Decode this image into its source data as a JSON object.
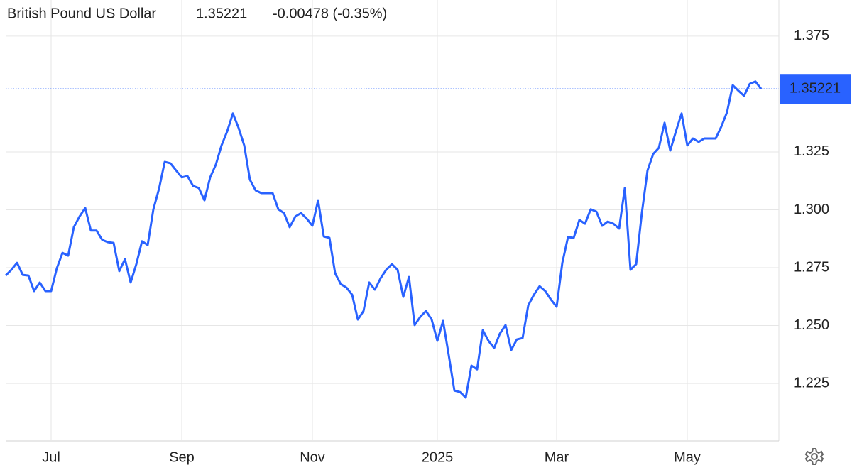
{
  "chart_data": {
    "type": "line",
    "title": "British Pound US Dollar",
    "last_price": 1.35221,
    "change_label": "-0.00478 (-0.35%)",
    "color": "#2962ff",
    "change_color": "#e53935",
    "categories": [
      null,
      null,
      null,
      null,
      null,
      null,
      null,
      null,
      "Jul",
      null,
      null,
      null,
      null,
      null,
      null,
      null,
      null,
      null,
      null,
      null,
      null,
      null,
      null,
      null,
      null,
      null,
      null,
      null,
      null,
      null,
      null,
      "Sep",
      null,
      null,
      null,
      null,
      null,
      null,
      null,
      null,
      null,
      null,
      null,
      null,
      null,
      null,
      null,
      null,
      null,
      null,
      null,
      null,
      null,
      null,
      "Nov",
      null,
      null,
      null,
      null,
      null,
      null,
      null,
      null,
      null,
      null,
      null,
      null,
      null,
      null,
      null,
      null,
      null,
      null,
      null,
      null,
      null,
      "2025",
      null,
      null,
      null,
      null,
      null,
      null,
      null,
      null,
      null,
      null,
      null,
      null,
      null,
      null,
      null,
      null,
      null,
      null,
      null,
      null,
      "Mar",
      null,
      null,
      null,
      null,
      null,
      null,
      null,
      null,
      null,
      null,
      null,
      null,
      null,
      null,
      null,
      null,
      null,
      null,
      null,
      null,
      null,
      null,
      "May",
      null,
      null,
      null,
      null,
      null,
      null,
      null,
      null,
      null,
      null,
      null,
      null,
      null
    ],
    "values": [
      1.2716,
      1.2741,
      1.2771,
      1.2719,
      1.2716,
      1.2649,
      1.2686,
      1.2649,
      1.2649,
      1.2747,
      1.2814,
      1.2802,
      1.2925,
      1.2971,
      1.3008,
      1.291,
      1.291,
      1.287,
      1.286,
      1.2857,
      1.2735,
      1.2787,
      1.2686,
      1.2765,
      1.2864,
      1.2848,
      1.3002,
      1.3091,
      1.3207,
      1.3201,
      1.317,
      1.314,
      1.3146,
      1.3103,
      1.3094,
      1.3041,
      1.314,
      1.3195,
      1.3278,
      1.3339,
      1.3416,
      1.3354,
      1.3278,
      1.313,
      1.3084,
      1.3072,
      1.3072,
      1.3072,
      1.3002,
      1.2986,
      1.2925,
      1.2971,
      1.2986,
      1.2962,
      1.2931,
      1.3041,
      1.2885,
      1.2879,
      1.2726,
      1.2679,
      1.2664,
      1.2633,
      1.2526,
      1.2563,
      1.2686,
      1.2655,
      1.2704,
      1.2741,
      1.2765,
      1.2741,
      1.2624,
      1.271,
      1.2502,
      1.2538,
      1.2563,
      1.2526,
      1.2434,
      1.252,
      1.2373,
      1.2219,
      1.2213,
      1.2189,
      1.2327,
      1.2311,
      1.248,
      1.2434,
      1.2403,
      1.2465,
      1.2502,
      1.2394,
      1.244,
      1.2446,
      1.2587,
      1.2633,
      1.267,
      1.2649,
      1.2612,
      1.2581,
      1.2771,
      1.2882,
      1.2879,
      1.2956,
      1.294,
      1.3002,
      1.2992,
      1.2931,
      1.2949,
      1.294,
      1.2919,
      1.3094,
      1.2741,
      1.2765,
      1.2986,
      1.317,
      1.3241,
      1.3268,
      1.3376,
      1.3256,
      1.3339,
      1.3416,
      1.3278,
      1.3308,
      1.3293,
      1.3308,
      1.3308,
      1.3308,
      1.336,
      1.3422,
      1.3538,
      1.3514,
      1.3492,
      1.3544,
      1.3554,
      1.35221
    ],
    "ylim": [
      1.2005,
      1.3906
    ],
    "yticks": [
      1.225,
      {
        "value": 1.25,
        "label": "1.250"
      },
      1.275,
      {
        "value": 1.3,
        "label": "1.300"
      },
      1.325,
      1.375
    ],
    "grid": true
  }
}
